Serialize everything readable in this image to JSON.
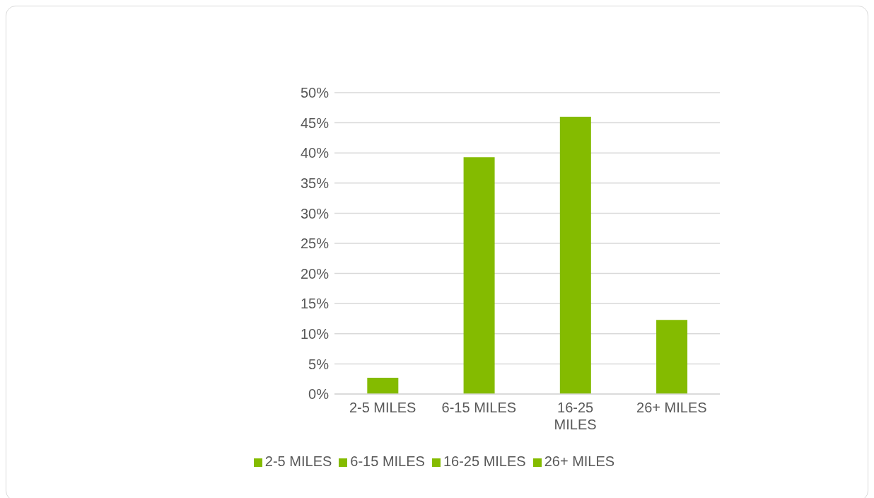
{
  "chart_data": {
    "type": "bar",
    "categories": [
      "2-5 MILES",
      "6-15 MILES",
      "16-25 MILES",
      "26+ MILES"
    ],
    "series": [
      {
        "name": "2-5 MILES",
        "color": "#84bb00",
        "values": [
          2.7,
          null,
          null,
          null
        ]
      },
      {
        "name": "6-15 MILES",
        "color": "#84bb00",
        "values": [
          null,
          39.3,
          null,
          null
        ]
      },
      {
        "name": "16-25 MILES",
        "color": "#84bb00",
        "values": [
          null,
          null,
          46.0,
          null
        ]
      },
      {
        "name": "26+ MILES",
        "color": "#84bb00",
        "values": [
          null,
          null,
          null,
          12.3
        ]
      }
    ],
    "stacked": true,
    "ylim": [
      0,
      50
    ],
    "yticks": [
      {
        "value": 0,
        "label": "0%"
      },
      {
        "value": 5,
        "label": "5%"
      },
      {
        "value": 10,
        "label": "10%"
      },
      {
        "value": 15,
        "label": "15%"
      },
      {
        "value": 20,
        "label": "20%"
      },
      {
        "value": 25,
        "label": "25%"
      },
      {
        "value": 30,
        "label": "30%"
      },
      {
        "value": 35,
        "label": "35%"
      },
      {
        "value": 40,
        "label": "40%"
      },
      {
        "value": 45,
        "label": "45%"
      },
      {
        "value": 50,
        "label": "50%"
      }
    ],
    "grid": "y",
    "legend": "bottom"
  }
}
